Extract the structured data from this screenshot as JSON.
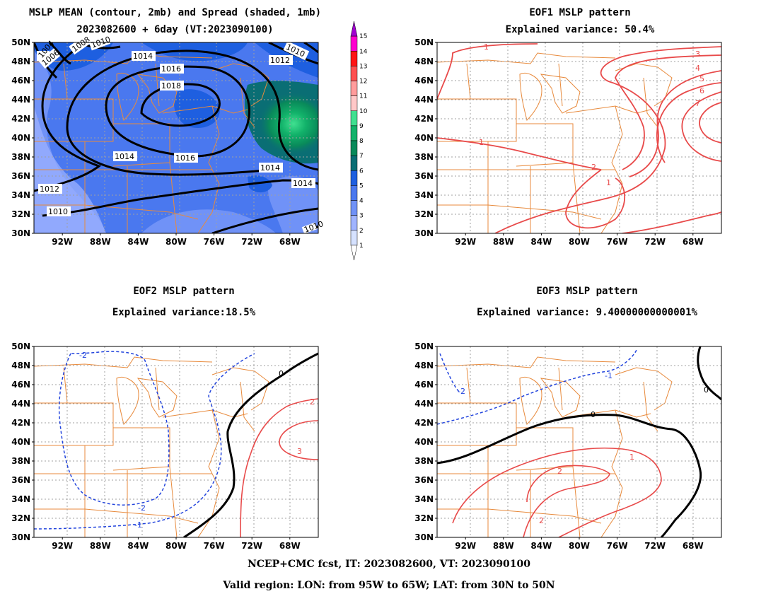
{
  "panels": {
    "mean": {
      "title_line1": "MSLP MEAN (contour, 2mb) and Spread (shaded, 1mb)",
      "title_line2": "2023082600 + 6day (VT:2023090100)",
      "contour_labels": [
        "1004",
        "1006",
        "1008",
        "1010",
        "1010",
        "1010",
        "1012",
        "1012",
        "1014",
        "1014",
        "1014",
        "1014",
        "1016",
        "1016",
        "1018",
        "1010"
      ]
    },
    "eof1": {
      "title_line1": "EOF1 MSLP pattern",
      "title_line2": "Explained variance: 50.4%",
      "contour_labels": [
        "1",
        "1",
        "1",
        "2",
        "3",
        "4",
        "5",
        "6",
        "7"
      ]
    },
    "eof2": {
      "title_line1": "EOF2 MSLP pattern",
      "title_line2": "Explained variance:18.5%",
      "contour_labels": [
        "-2",
        "-2",
        "-1",
        "0",
        "2",
        "3"
      ]
    },
    "eof3": {
      "title_line1": "EOF3 MSLP pattern",
      "title_line2": "Explained variance: 9.40000000000001%",
      "contour_labels": [
        "-1",
        "-2",
        "0",
        "0",
        "1",
        "2",
        "2"
      ]
    }
  },
  "axes": {
    "lat_labels": [
      "50N",
      "48N",
      "46N",
      "44N",
      "42N",
      "40N",
      "38N",
      "36N",
      "34N",
      "32N",
      "30N"
    ],
    "lon_labels": [
      "92W",
      "88W",
      "84W",
      "80W",
      "76W",
      "72W",
      "68W"
    ]
  },
  "colorbar": {
    "levels": [
      "1",
      "2",
      "3",
      "4",
      "5",
      "6",
      "7",
      "8",
      "9",
      "10",
      "11",
      "12",
      "13",
      "14",
      "15"
    ],
    "colors": [
      "#d6e2ff",
      "#a0b4ff",
      "#7092f7",
      "#4a78ef",
      "#1e5fe0",
      "#0a6e74",
      "#098a5a",
      "#12b26a",
      "#40e090",
      "#ffc8c8",
      "#ff9c9c",
      "#ff5050",
      "#ff1414",
      "#ff00d0",
      "#a000d0"
    ]
  },
  "colors": {
    "map_lines": "#e88a3c",
    "positive_contour": "#e84a4a",
    "negative_contour": "#2244dd",
    "zero_contour": "#000000"
  },
  "footer": {
    "line1": "NCEP+CMC fcst, IT: 2023082600, VT: 2023090100",
    "line2": "Valid region: LON: from 95W to 65W; LAT: from 30N to 50N"
  }
}
